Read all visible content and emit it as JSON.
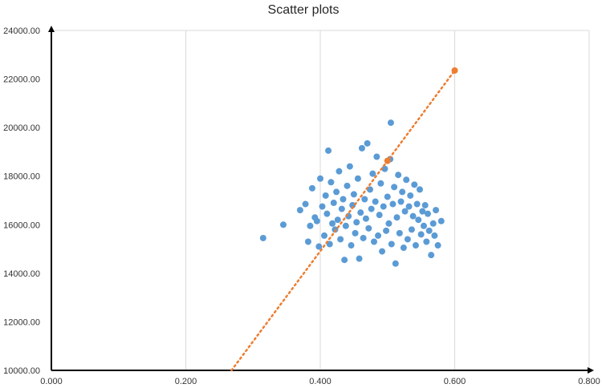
{
  "chart_data": {
    "type": "scatter",
    "title": "Scatter plots",
    "xlabel": "",
    "ylabel": "",
    "xlim": [
      0,
      0.8
    ],
    "ylim": [
      10000,
      24000
    ],
    "x_ticks": [
      0.0,
      0.2,
      0.4,
      0.6,
      0.8
    ],
    "x_tick_labels": [
      "0.000",
      "0.200",
      "0.400",
      "0.600",
      "0.800"
    ],
    "y_ticks": [
      10000,
      12000,
      14000,
      16000,
      18000,
      20000,
      22000,
      24000
    ],
    "y_tick_labels": [
      "10000.00",
      "12000.00",
      "14000.00",
      "16000.00",
      "18000.00",
      "20000.00",
      "22000.00",
      "24000.00"
    ],
    "grid": "vertical",
    "legend": "none",
    "colors": {
      "points": "#5b9bd5",
      "line": "#ed7d31",
      "axis": "#000000",
      "grid": "#d9d9d9"
    },
    "series": [
      {
        "marker": "circle",
        "color": "#5b9bd5",
        "note_count": "approx. 1000 points; representative subset recorded",
        "points": [
          [
            0.315,
            15450
          ],
          [
            0.345,
            16000
          ],
          [
            0.37,
            16600
          ],
          [
            0.378,
            16850
          ],
          [
            0.382,
            15300
          ],
          [
            0.385,
            15950
          ],
          [
            0.388,
            17500
          ],
          [
            0.392,
            16300
          ],
          [
            0.395,
            16150
          ],
          [
            0.398,
            15100
          ],
          [
            0.4,
            17900
          ],
          [
            0.403,
            16750
          ],
          [
            0.406,
            15550
          ],
          [
            0.408,
            17200
          ],
          [
            0.41,
            16450
          ],
          [
            0.412,
            19050
          ],
          [
            0.414,
            15200
          ],
          [
            0.416,
            17750
          ],
          [
            0.418,
            16050
          ],
          [
            0.42,
            16900
          ],
          [
            0.422,
            15800
          ],
          [
            0.424,
            17350
          ],
          [
            0.426,
            16200
          ],
          [
            0.428,
            18200
          ],
          [
            0.43,
            15400
          ],
          [
            0.432,
            16650
          ],
          [
            0.434,
            17050
          ],
          [
            0.436,
            14550
          ],
          [
            0.438,
            15950
          ],
          [
            0.44,
            17600
          ],
          [
            0.442,
            16350
          ],
          [
            0.444,
            18400
          ],
          [
            0.446,
            15150
          ],
          [
            0.448,
            16800
          ],
          [
            0.45,
            17250
          ],
          [
            0.452,
            15650
          ],
          [
            0.454,
            16100
          ],
          [
            0.456,
            17900
          ],
          [
            0.458,
            14600
          ],
          [
            0.46,
            16500
          ],
          [
            0.462,
            19150
          ],
          [
            0.464,
            15450
          ],
          [
            0.466,
            17050
          ],
          [
            0.468,
            16250
          ],
          [
            0.47,
            19350
          ],
          [
            0.472,
            15850
          ],
          [
            0.474,
            17450
          ],
          [
            0.476,
            16650
          ],
          [
            0.478,
            18100
          ],
          [
            0.48,
            15300
          ],
          [
            0.482,
            16950
          ],
          [
            0.484,
            18800
          ],
          [
            0.486,
            15550
          ],
          [
            0.488,
            16400
          ],
          [
            0.49,
            17700
          ],
          [
            0.492,
            14900
          ],
          [
            0.494,
            16750
          ],
          [
            0.496,
            18300
          ],
          [
            0.498,
            15750
          ],
          [
            0.5,
            17150
          ],
          [
            0.502,
            16050
          ],
          [
            0.504,
            18700
          ],
          [
            0.505,
            20200
          ],
          [
            0.506,
            15200
          ],
          [
            0.508,
            16850
          ],
          [
            0.51,
            17550
          ],
          [
            0.512,
            14400
          ],
          [
            0.514,
            16300
          ],
          [
            0.516,
            18050
          ],
          [
            0.518,
            15650
          ],
          [
            0.52,
            16950
          ],
          [
            0.522,
            17350
          ],
          [
            0.524,
            15050
          ],
          [
            0.526,
            16550
          ],
          [
            0.528,
            17850
          ],
          [
            0.53,
            15400
          ],
          [
            0.532,
            16750
          ],
          [
            0.534,
            17200
          ],
          [
            0.536,
            15800
          ],
          [
            0.538,
            16350
          ],
          [
            0.54,
            17650
          ],
          [
            0.542,
            15150
          ],
          [
            0.544,
            16850
          ],
          [
            0.546,
            16200
          ],
          [
            0.548,
            17450
          ],
          [
            0.55,
            15600
          ],
          [
            0.552,
            16550
          ],
          [
            0.554,
            15950
          ],
          [
            0.556,
            16800
          ],
          [
            0.558,
            15300
          ],
          [
            0.56,
            16450
          ],
          [
            0.562,
            15750
          ],
          [
            0.565,
            14750
          ],
          [
            0.568,
            16050
          ],
          [
            0.57,
            15550
          ],
          [
            0.572,
            16600
          ],
          [
            0.575,
            15150
          ],
          [
            0.58,
            16150
          ]
        ]
      },
      {
        "type": "line",
        "style": "dotted",
        "color": "#ed7d31",
        "points": [
          [
            0.268,
            10000
          ],
          [
            0.5,
            18630
          ],
          [
            0.6,
            22350
          ]
        ],
        "markers": [
          [
            0.5,
            18630
          ],
          [
            0.6,
            22350
          ]
        ]
      }
    ]
  }
}
